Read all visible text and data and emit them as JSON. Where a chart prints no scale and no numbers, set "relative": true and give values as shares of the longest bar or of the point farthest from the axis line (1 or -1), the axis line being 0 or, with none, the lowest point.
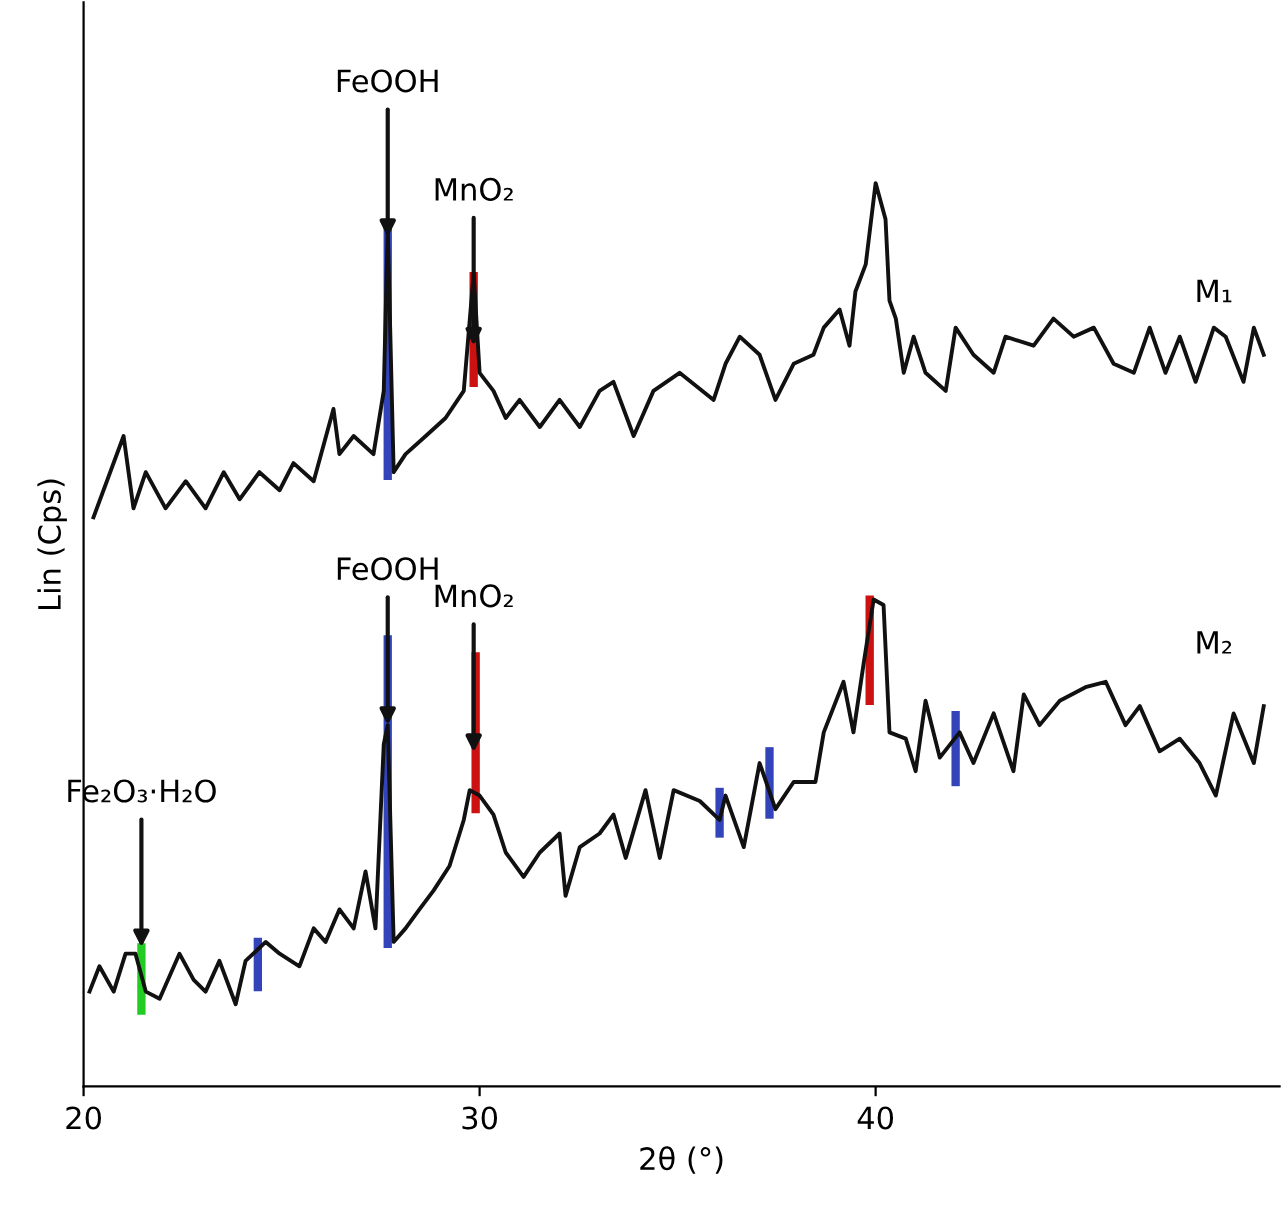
{
  "chart_data": {
    "type": "line",
    "relative": true,
    "xlabel": "2θ (°)",
    "ylabel": "Lin (Cps)",
    "xlim": [
      20,
      50.2
    ],
    "xticks": [
      20,
      30,
      40
    ],
    "series": [
      {
        "name": "M₁",
        "color": "#111111",
        "x": [
          20.25,
          21.01,
          21.26,
          21.57,
          22.07,
          22.58,
          23.08,
          23.54,
          23.94,
          24.44,
          24.95,
          25.3,
          25.81,
          26.31,
          26.46,
          26.82,
          27.32,
          27.58,
          27.68,
          27.83,
          28.13,
          28.64,
          29.14,
          29.6,
          29.85,
          30.0,
          30.35,
          30.66,
          31.01,
          31.52,
          32.02,
          32.53,
          33.03,
          33.38,
          33.89,
          34.39,
          35.05,
          35.91,
          36.21,
          36.57,
          37.07,
          37.47,
          37.93,
          38.43,
          38.69,
          39.09,
          39.34,
          39.49,
          39.75,
          40.0,
          40.25,
          40.35,
          40.51,
          40.71,
          40.96,
          41.26,
          41.77,
          42.02,
          42.47,
          42.98,
          43.28,
          43.99,
          44.49,
          45.0,
          45.51,
          46.01,
          46.52,
          46.92,
          47.32,
          47.68,
          48.08,
          48.54,
          48.84,
          49.29,
          49.55,
          49.8
        ],
        "values": [
          0.63,
          0.72,
          0.64,
          0.68,
          0.64,
          0.67,
          0.64,
          0.68,
          0.65,
          0.68,
          0.66,
          0.69,
          0.67,
          0.75,
          0.7,
          0.72,
          0.7,
          0.77,
          0.95,
          0.68,
          0.7,
          0.72,
          0.74,
          0.77,
          0.9,
          0.79,
          0.77,
          0.74,
          0.76,
          0.73,
          0.76,
          0.73,
          0.77,
          0.78,
          0.72,
          0.77,
          0.79,
          0.76,
          0.8,
          0.83,
          0.81,
          0.76,
          0.8,
          0.81,
          0.84,
          0.86,
          0.82,
          0.88,
          0.91,
          1.0,
          0.96,
          0.87,
          0.85,
          0.79,
          0.83,
          0.79,
          0.77,
          0.84,
          0.81,
          0.79,
          0.83,
          0.82,
          0.85,
          0.83,
          0.84,
          0.8,
          0.79,
          0.84,
          0.79,
          0.83,
          0.78,
          0.84,
          0.83,
          0.78,
          0.84,
          0.81
        ]
      },
      {
        "name": "M₂",
        "color": "#111111",
        "x": [
          20.15,
          20.4,
          20.76,
          21.06,
          21.31,
          21.57,
          21.92,
          22.42,
          22.78,
          23.08,
          23.43,
          23.84,
          24.09,
          24.6,
          24.95,
          25.45,
          25.81,
          26.11,
          26.46,
          26.82,
          27.12,
          27.37,
          27.58,
          27.68,
          27.83,
          28.13,
          28.48,
          28.84,
          29.24,
          29.6,
          29.75,
          30.0,
          30.35,
          30.66,
          31.11,
          31.52,
          32.02,
          32.17,
          32.53,
          33.03,
          33.38,
          33.69,
          34.19,
          34.55,
          34.9,
          35.56,
          36.06,
          36.21,
          36.67,
          37.07,
          37.47,
          37.93,
          38.48,
          38.69,
          39.19,
          39.44,
          39.7,
          39.95,
          40.2,
          40.35,
          40.76,
          41.01,
          41.26,
          41.62,
          42.12,
          42.47,
          42.98,
          43.48,
          43.74,
          44.14,
          44.65,
          45.3,
          45.81,
          46.31,
          46.67,
          47.17,
          47.68,
          48.18,
          48.59,
          49.04,
          49.55,
          49.8
        ],
        "values": [
          0.105,
          0.133,
          0.105,
          0.147,
          0.147,
          0.105,
          0.097,
          0.147,
          0.118,
          0.105,
          0.139,
          0.091,
          0.139,
          0.16,
          0.147,
          0.133,
          0.175,
          0.16,
          0.196,
          0.175,
          0.238,
          0.175,
          0.379,
          0.4,
          0.16,
          0.175,
          0.196,
          0.217,
          0.244,
          0.295,
          0.328,
          0.322,
          0.301,
          0.259,
          0.232,
          0.259,
          0.28,
          0.211,
          0.265,
          0.28,
          0.301,
          0.253,
          0.328,
          0.253,
          0.328,
          0.316,
          0.295,
          0.322,
          0.265,
          0.358,
          0.307,
          0.337,
          0.337,
          0.392,
          0.448,
          0.392,
          0.469,
          0.539,
          0.533,
          0.392,
          0.385,
          0.349,
          0.427,
          0.364,
          0.392,
          0.358,
          0.413,
          0.349,
          0.434,
          0.4,
          0.427,
          0.442,
          0.448,
          0.4,
          0.421,
          0.371,
          0.385,
          0.358,
          0.322,
          0.413,
          0.358,
          0.421
        ]
      },
      {
        "color": "#3344bb",
        "x": [
          27.68,
          27.68
        ],
        "values": [
          0.676,
          0.954
        ]
      },
      {
        "color": "#cc1111",
        "x": [
          29.85,
          29.85
        ],
        "values": [
          0.779,
          0.897
        ]
      },
      {
        "color": "#3344bb",
        "x": [
          27.68,
          27.68
        ],
        "values": [
          0.158,
          0.495
        ]
      },
      {
        "color": "#cc1111",
        "x": [
          29.9,
          29.9
        ],
        "values": [
          0.307,
          0.476
        ]
      },
      {
        "color": "#22cc22",
        "x": [
          21.46,
          21.46
        ],
        "values": [
          0.084,
          0.154
        ]
      },
      {
        "color": "#3344bb",
        "x": [
          24.4,
          24.4
        ],
        "values": [
          0.11,
          0.16
        ]
      },
      {
        "color": "#3344bb",
        "x": [
          36.06,
          36.06
        ],
        "values": [
          0.28,
          0.326
        ]
      },
      {
        "color": "#3344bb",
        "x": [
          37.32,
          37.32
        ],
        "values": [
          0.301,
          0.371
        ]
      },
      {
        "color": "#cc1111",
        "x": [
          39.85,
          39.85
        ],
        "values": [
          0.427,
          0.539
        ]
      },
      {
        "color": "#3344bb",
        "x": [
          42.02,
          42.02
        ],
        "values": [
          0.337,
          0.411
        ]
      }
    ],
    "annotations": [
      {
        "text": "FeOOH",
        "x": 27.68,
        "y": 0.94
      },
      {
        "text": "MnO₂",
        "x": 29.85,
        "y": 0.82
      },
      {
        "text": "FeOOH",
        "x": 27.68,
        "y": 0.4
      },
      {
        "text": "MnO₂",
        "x": 29.85,
        "y": 0.37
      },
      {
        "text": "Fe₂O₃·H₂O",
        "x": 21.46,
        "y": 0.154
      }
    ]
  }
}
